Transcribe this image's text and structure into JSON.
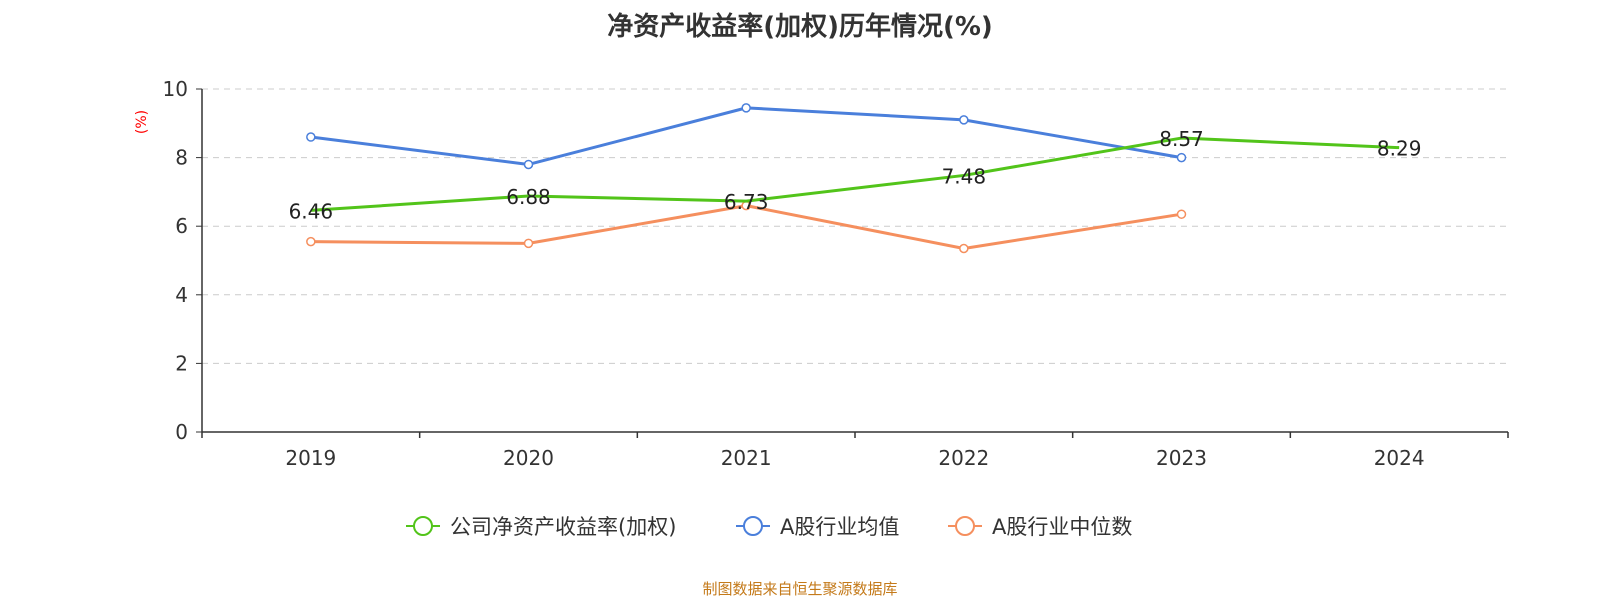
{
  "chart_data": {
    "type": "line",
    "title": "净资产收益率(加权)历年情况(%)",
    "ylabel": "(%)",
    "xlabel": "",
    "categories": [
      "2019",
      "2020",
      "2021",
      "2022",
      "2023",
      "2024"
    ],
    "ylim": [
      0,
      10
    ],
    "yticks": [
      0,
      2,
      4,
      6,
      8,
      10
    ],
    "grid": true,
    "legend_position": "bottom",
    "series": [
      {
        "name": "公司净资产收益率(加权)",
        "color": "#52c41a",
        "values": [
          6.46,
          6.88,
          6.73,
          7.48,
          8.57,
          8.29
        ],
        "labels": [
          "6.46",
          "6.88",
          "6.73",
          "7.48",
          "8.57",
          "8.29"
        ]
      },
      {
        "name": "A股行业均值",
        "color": "#4a7fdb",
        "values": [
          8.6,
          7.8,
          9.45,
          9.1,
          8.0,
          null
        ]
      },
      {
        "name": "A股行业中位数",
        "color": "#f58f5e",
        "values": [
          5.55,
          5.5,
          6.6,
          5.35,
          6.35,
          null
        ]
      }
    ]
  },
  "source_note": "制图数据来自恒生聚源数据库"
}
